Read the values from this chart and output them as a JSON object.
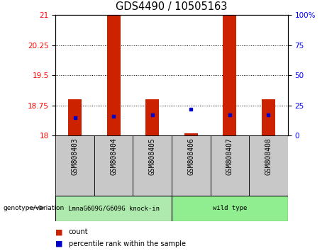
{
  "title": "GDS4490 / 10505163",
  "samples": [
    "GSM808403",
    "GSM808404",
    "GSM808405",
    "GSM808406",
    "GSM808407",
    "GSM808408"
  ],
  "red_bar_heights": [
    18.9,
    21.0,
    18.9,
    18.05,
    21.0,
    18.9
  ],
  "blue_square_pct": [
    15,
    16,
    17,
    22,
    17,
    17
  ],
  "ylim_left": [
    18,
    21
  ],
  "ylim_right": [
    0,
    100
  ],
  "yticks_left": [
    18,
    18.75,
    19.5,
    20.25,
    21
  ],
  "yticks_right": [
    0,
    25,
    50,
    75,
    100
  ],
  "groups": [
    {
      "label": "LmnaG609G/G609G knock-in",
      "indices": [
        0,
        1,
        2
      ],
      "color": "#aeeaae"
    },
    {
      "label": "wild type",
      "indices": [
        3,
        4,
        5
      ],
      "color": "#90ee90"
    }
  ],
  "group_header": "genotype/variation",
  "bar_color": "#cc2200",
  "blue_color": "#0000cc",
  "sample_bg_color": "#c8c8c8",
  "legend_items": [
    {
      "label": "count",
      "color": "#cc2200"
    },
    {
      "label": "percentile rank within the sample",
      "color": "#0000cc"
    }
  ],
  "bar_width": 0.35,
  "title_fontsize": 10.5,
  "tick_fontsize": 7.5,
  "label_fontsize": 7.5
}
